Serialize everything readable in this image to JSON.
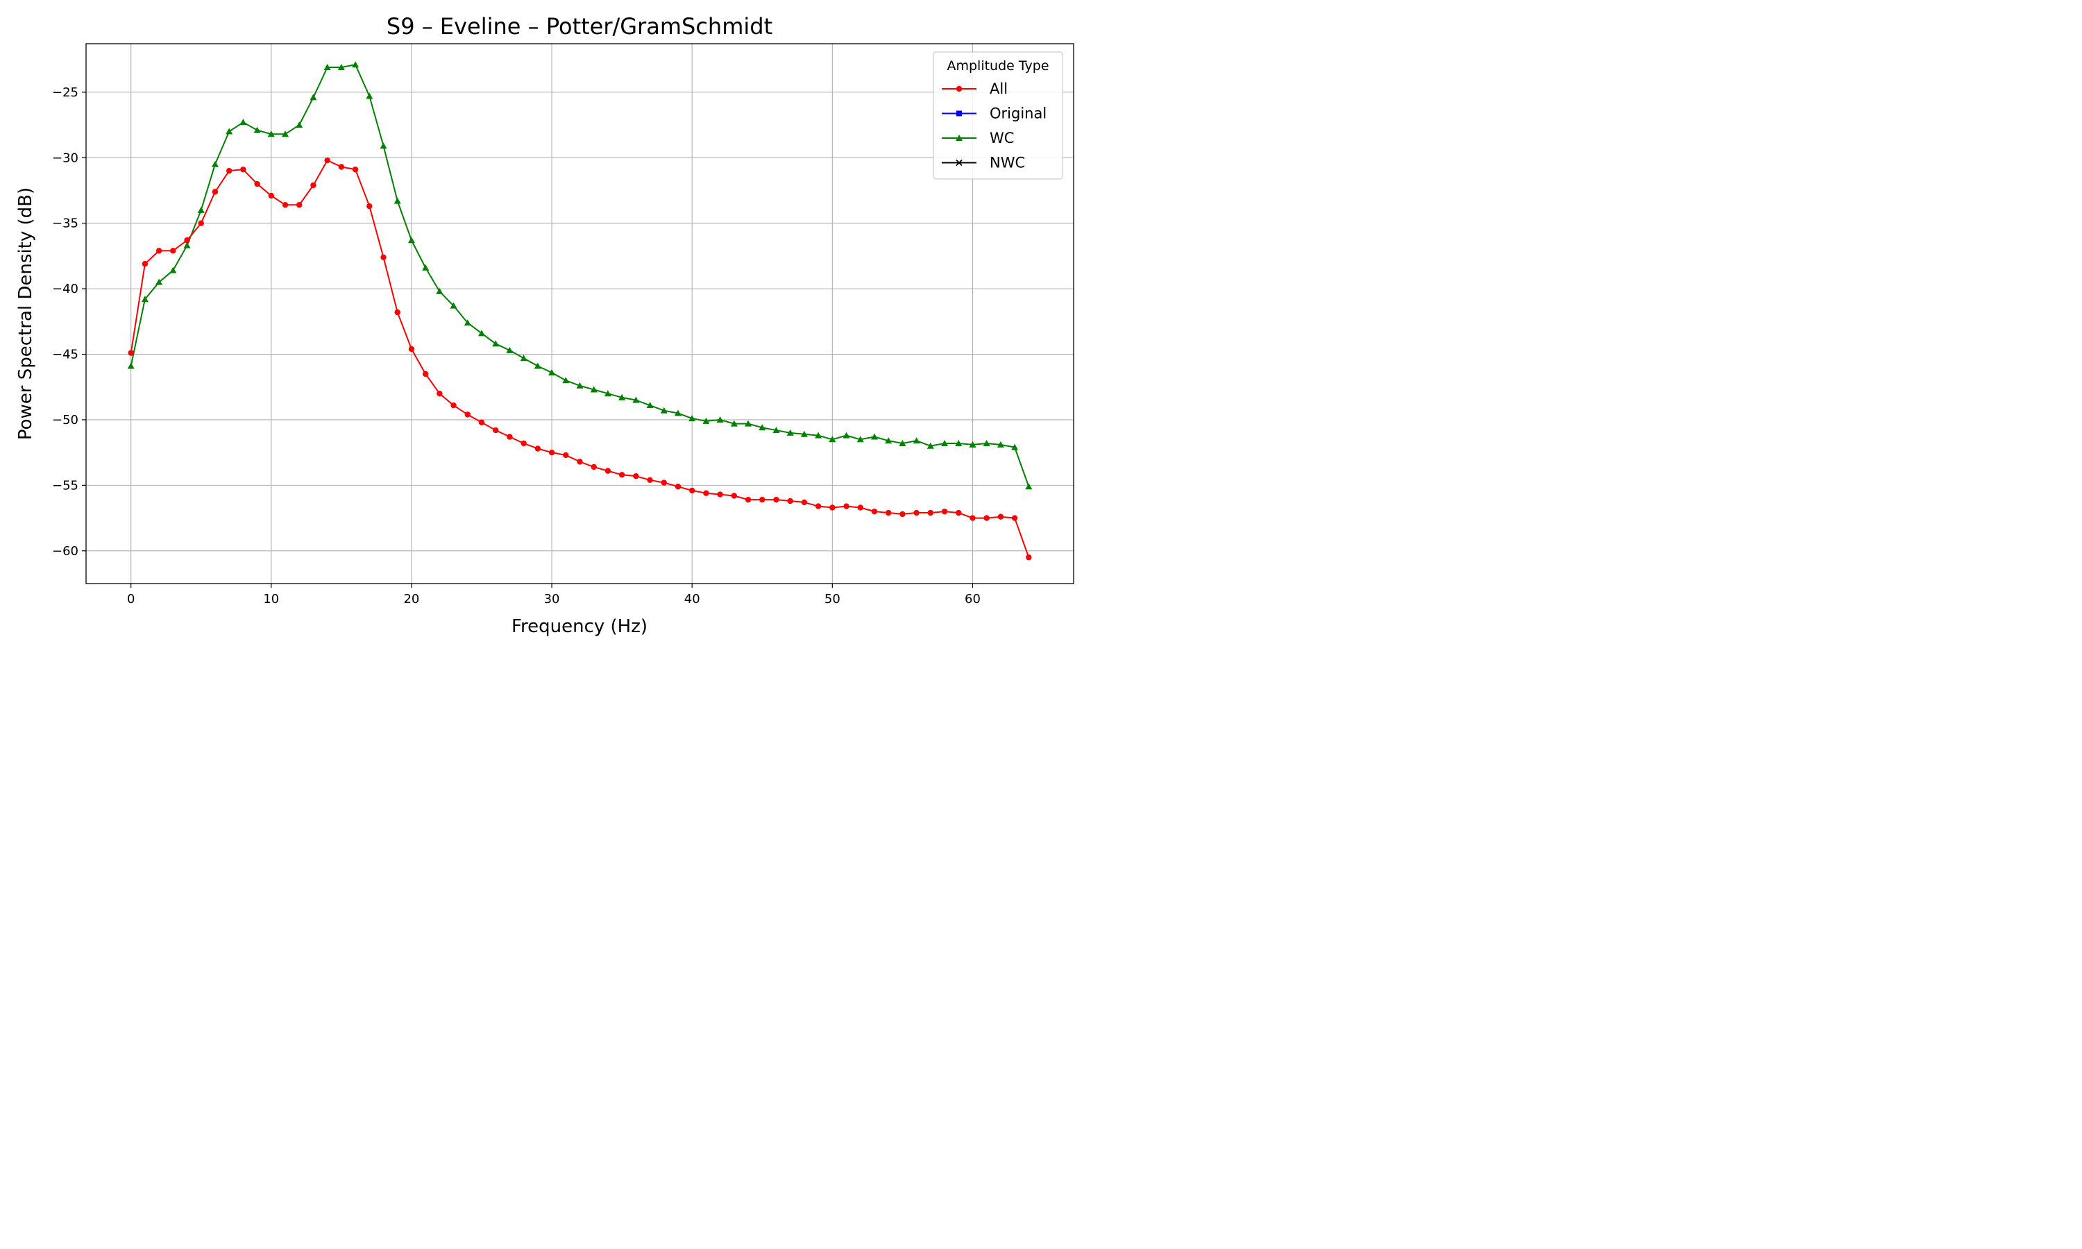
{
  "chart_data": {
    "type": "line",
    "title": "S9 – Eveline – Potter/GramSchmidt",
    "xlabel": "Frequency (Hz)",
    "ylabel": "Power Spectral Density (dB)",
    "xlim": [
      -3.2,
      67.2
    ],
    "ylim": [
      -62.5,
      -21.3
    ],
    "xticks": [
      0,
      10,
      20,
      30,
      40,
      50,
      60
    ],
    "yticks": [
      -60,
      -55,
      -50,
      -45,
      -40,
      -35,
      -30,
      -25
    ],
    "xtick_labels": [
      "0",
      "10",
      "20",
      "30",
      "40",
      "50",
      "60"
    ],
    "ytick_labels": [
      "−60",
      "−55",
      "−50",
      "−45",
      "−40",
      "−35",
      "−30",
      "−25"
    ],
    "grid": true,
    "legend": {
      "title": "Amplitude Type",
      "position": "top-right"
    },
    "series": [
      {
        "name": "All",
        "color": "#ff0000",
        "marker": "circle",
        "y": [
          -44.9,
          -38.1,
          -37.1,
          -37.1,
          -36.3,
          -35.0,
          -32.6,
          -31.0,
          -30.9,
          -32.0,
          -32.9,
          -33.6,
          -33.6,
          -32.1,
          -30.2,
          -30.7,
          -30.9,
          -33.7,
          -37.6,
          -41.8,
          -44.6,
          -46.5,
          -48.0,
          -48.9,
          -49.6,
          -50.2,
          -50.8,
          -51.3,
          -51.8,
          -52.2,
          -52.5,
          -52.7,
          -53.2,
          -53.6,
          -53.9,
          -54.2,
          -54.3,
          -54.6,
          -54.8,
          -55.1,
          -55.4,
          -55.6,
          -55.7,
          -55.8,
          -56.1,
          -56.1,
          -56.1,
          -56.2,
          -56.3,
          -56.6,
          -56.7,
          -56.6,
          -56.7,
          -57.0,
          -57.1,
          -57.2,
          -57.1,
          -57.1,
          -57.0,
          -57.1,
          -57.5,
          -57.5,
          -57.4,
          -57.5,
          -60.5
        ]
      },
      {
        "name": "Original",
        "color": "#0000ff",
        "marker": "square",
        "y": []
      },
      {
        "name": "WC",
        "color": "#008000",
        "marker": "triangle",
        "y": [
          -45.9,
          -40.8,
          -39.5,
          -38.6,
          -36.7,
          -34.0,
          -30.5,
          -28.0,
          -27.3,
          -27.9,
          -28.2,
          -28.2,
          -27.5,
          -25.4,
          -23.1,
          -23.1,
          -22.9,
          -25.3,
          -29.1,
          -33.3,
          -36.3,
          -38.4,
          -40.2,
          -41.3,
          -42.6,
          -43.4,
          -44.2,
          -44.7,
          -45.3,
          -45.9,
          -46.4,
          -47.0,
          -47.4,
          -47.7,
          -48.0,
          -48.3,
          -48.5,
          -48.9,
          -49.3,
          -49.5,
          -49.9,
          -50.1,
          -50.0,
          -50.3,
          -50.3,
          -50.6,
          -50.8,
          -51.0,
          -51.1,
          -51.2,
          -51.5,
          -51.2,
          -51.5,
          -51.3,
          -51.6,
          -51.8,
          -51.6,
          -52.0,
          -51.8,
          -51.8,
          -51.9,
          -51.8,
          -51.9,
          -52.1,
          -55.1
        ]
      },
      {
        "name": "NWC",
        "color": "#000000",
        "marker": "x",
        "y": []
      }
    ]
  }
}
